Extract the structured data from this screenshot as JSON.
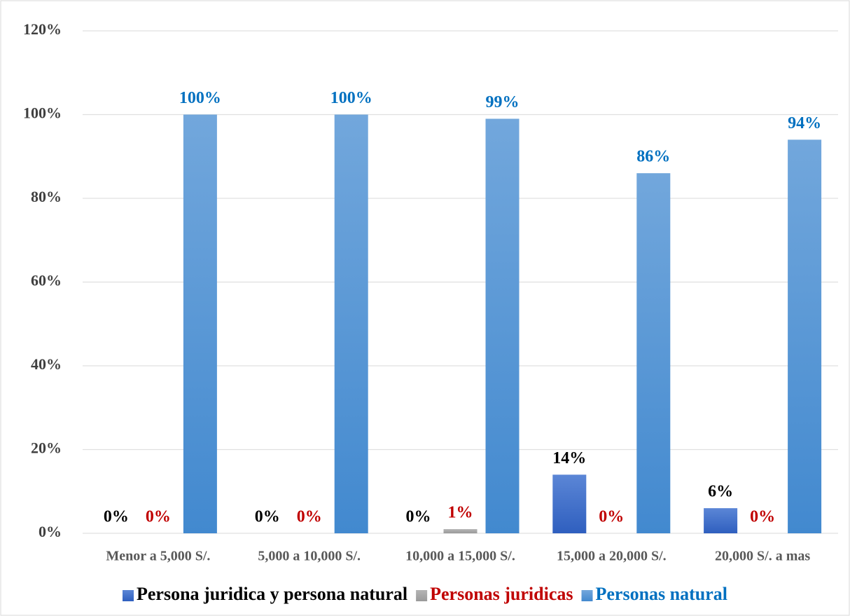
{
  "chart_data": {
    "type": "bar",
    "categories": [
      "Menor a 5,000 S/.",
      "5,000 a 10,000 S/.",
      "10,000 a 15,000 S/.",
      "15,000 a 20,000 S/.",
      "20,000 S/. a mas"
    ],
    "series": [
      {
        "name": "Persona juridica y persona natural",
        "color": "#4472c4",
        "label_color": "#000000",
        "values": [
          0,
          0,
          0,
          14,
          6
        ],
        "value_labels": [
          "0%",
          "0%",
          "0%",
          "14%",
          "6%"
        ]
      },
      {
        "name": "Personas juridicas",
        "color": "#a5a5a5",
        "label_color": "#c00000",
        "values": [
          0,
          0,
          1,
          0,
          0
        ],
        "value_labels": [
          "0%",
          "0%",
          "1%",
          "0%",
          "0%"
        ]
      },
      {
        "name": "Personas natural",
        "color": "#5b9bd5",
        "label_color": "#0070c0",
        "values": [
          100,
          100,
          99,
          86,
          94
        ],
        "value_labels": [
          "100%",
          "100%",
          "99%",
          "86%",
          "94%"
        ]
      }
    ],
    "ylim": [
      0,
      120
    ],
    "yticks": [
      {
        "value": 0,
        "label": "0%"
      },
      {
        "value": 20,
        "label": "20%"
      },
      {
        "value": 40,
        "label": "40%"
      },
      {
        "value": 60,
        "label": "60%"
      },
      {
        "value": 80,
        "label": "80%"
      },
      {
        "value": 100,
        "label": "100%"
      },
      {
        "value": 120,
        "label": "120%"
      }
    ],
    "grid": true,
    "legend": "bottom"
  }
}
